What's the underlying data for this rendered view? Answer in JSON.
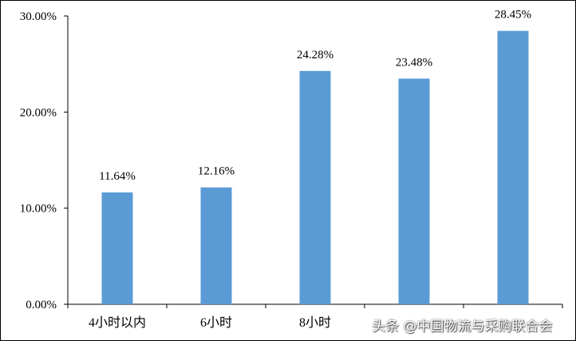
{
  "chart_data": {
    "type": "bar",
    "categories": [
      "4小时以内",
      "6小时",
      "8小时",
      "",
      ""
    ],
    "values": [
      11.64,
      12.16,
      24.28,
      23.48,
      28.45
    ],
    "data_labels": [
      "11.64%",
      "12.16%",
      "24.28%",
      "23.48%",
      "28.45%"
    ],
    "ylim": [
      0,
      30
    ],
    "yticks": [
      0,
      10,
      20,
      30
    ],
    "ytick_labels": [
      "0.00%",
      "10.00%",
      "20.00%",
      "30.00%"
    ],
    "title": "",
    "xlabel": "",
    "ylabel": "",
    "grid": false,
    "bar_color": "#5b9bd5"
  },
  "watermark": "头条 @中国物流与采购联合会"
}
